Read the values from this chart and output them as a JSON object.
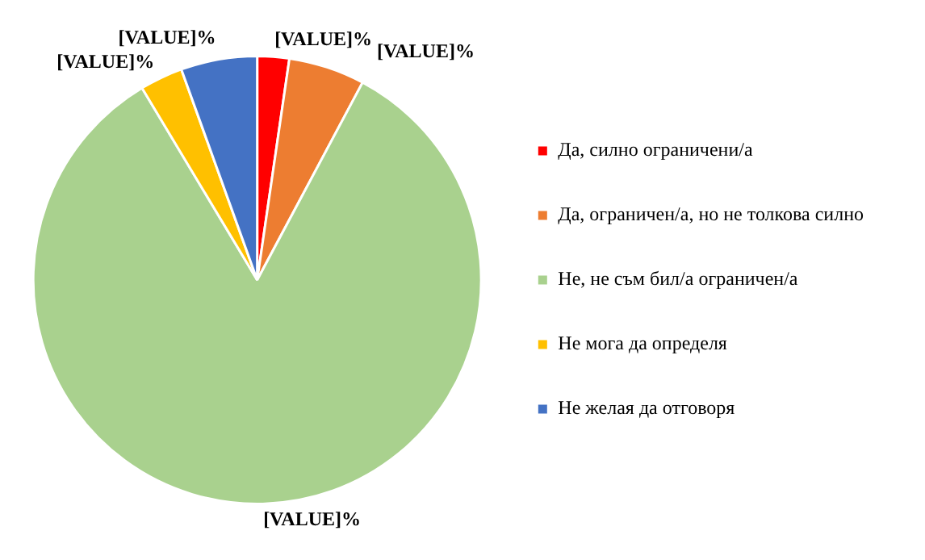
{
  "chart_data": {
    "type": "pie",
    "categories": [
      "Да, силно ограничени/а",
      "Да, ограничен/а, но не толкова силно",
      "Не, не съм бил/а ограничен/а",
      "Не мога да определя",
      "Не желая да отговоря"
    ],
    "values": [
      2.3,
      5.5,
      83.6,
      3.1,
      5.5
    ],
    "colors": [
      "#ff0000",
      "#ed7d31",
      "#a9d18e",
      "#ffc000",
      "#4472c4"
    ],
    "value_labels": [
      "[VALUE]%",
      "[VALUE]%",
      "[VALUE]%",
      "[VALUE]%",
      "[VALUE]%"
    ],
    "legend": "right"
  }
}
